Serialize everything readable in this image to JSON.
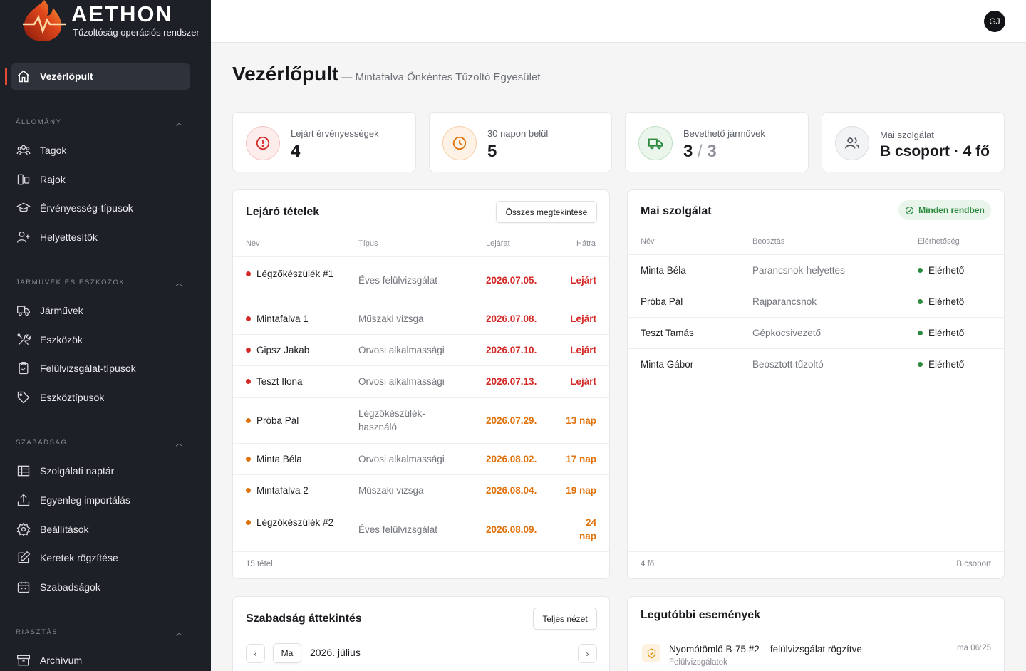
{
  "brand": {
    "name": "AETHON",
    "subtitle": "Tűzoltóság operációs rendszer"
  },
  "user": {
    "initials": "GJ"
  },
  "sidebar": {
    "active": {
      "label": "Vezérlőpult",
      "icon": "home-icon"
    },
    "sections": [
      {
        "title": "ÁLLOMÁNY",
        "items": [
          {
            "label": "Tagok",
            "icon": "users-icon"
          },
          {
            "label": "Rajok",
            "icon": "squads-icon"
          },
          {
            "label": "Érvényesség-típusok",
            "icon": "graduation-cap-icon"
          },
          {
            "label": "Helyettesítők",
            "icon": "user-plus-icon"
          }
        ]
      },
      {
        "title": "JÁRMŰVEK ÉS ESZKÖZÖK",
        "items": [
          {
            "label": "Járművek",
            "icon": "truck-icon"
          },
          {
            "label": "Eszközök",
            "icon": "tools-icon"
          },
          {
            "label": "Felülvizsgálat-típusok",
            "icon": "clipboard-check-icon"
          },
          {
            "label": "Eszköztípusok",
            "icon": "tag-icon"
          }
        ]
      },
      {
        "title": "SZABADSÁG",
        "items": [
          {
            "label": "Szolgálati naptár",
            "icon": "table-icon"
          },
          {
            "label": "Egyenleg importálás",
            "icon": "upload-icon"
          },
          {
            "label": "Beállítások",
            "icon": "gear-icon"
          },
          {
            "label": "Keretek rögzítése",
            "icon": "edit-icon"
          },
          {
            "label": "Szabadságok",
            "icon": "calendar-icon"
          }
        ]
      },
      {
        "title": "RIASZTÁS",
        "items": [
          {
            "label": "Archívum",
            "icon": "archive-icon"
          }
        ]
      }
    ]
  },
  "header": {
    "title": "Vezérlőpult",
    "subtitle": "— Mintafalva Önkéntes Tűzoltó Egyesület"
  },
  "stats": [
    {
      "label": "Lejárt érvényességek",
      "value": "4",
      "icon": "alert-circle-icon",
      "color": "#d42b28"
    },
    {
      "label": "30 napon belül",
      "value": "5",
      "icon": "clock-icon",
      "color": "#e0720c"
    },
    {
      "label": "Bevethető járművek",
      "value_main": "3",
      "value_sep": "/",
      "value_total": "3",
      "icon": "truck-icon",
      "color": "#2b8a3e"
    },
    {
      "label": "Mai szolgálat",
      "value": "B csoport · 4 fő",
      "icon": "users-icon",
      "color": "#5c6068"
    }
  ],
  "expiring": {
    "title": "Lejáró tételek",
    "view_all": "Összes megtekintése",
    "columns": [
      "Név",
      "Típus",
      "Lejárat",
      "Hátra"
    ],
    "rows": [
      {
        "name": "Légzőkészülék #1",
        "type": "Éves felülvizsgálat",
        "date": "2026.07.05.",
        "left": "Lejárt",
        "status": "red"
      },
      {
        "name": "Mintafalva 1",
        "type": "Műszaki vizsga",
        "date": "2026.07.08.",
        "left": "Lejárt",
        "status": "red"
      },
      {
        "name": "Gipsz Jakab",
        "type": "Orvosi alkalmassági",
        "date": "2026.07.10.",
        "left": "Lejárt",
        "status": "red"
      },
      {
        "name": "Teszt Ilona",
        "type": "Orvosi alkalmassági",
        "date": "2026.07.13.",
        "left": "Lejárt",
        "status": "red"
      },
      {
        "name": "Próba Pál",
        "type": "Légzőkészülék-használó",
        "date": "2026.07.29.",
        "left": "13 nap",
        "status": "orange"
      },
      {
        "name": "Minta Béla",
        "type": "Orvosi alkalmassági",
        "date": "2026.08.02.",
        "left": "17 nap",
        "status": "orange"
      },
      {
        "name": "Mintafalva 2",
        "type": "Műszaki vizsga",
        "date": "2026.08.04.",
        "left": "19 nap",
        "status": "orange"
      },
      {
        "name": "Légzőkészülék #2",
        "type": "Éves felülvizsgálat",
        "date": "2026.08.09.",
        "left": "24 nap",
        "status": "orange"
      }
    ],
    "footer": "15 tétel"
  },
  "duty": {
    "title": "Mai szolgálat",
    "badge": "Minden rendben",
    "columns": [
      "Név",
      "Beosztás",
      "Elérhetőség"
    ],
    "rows": [
      {
        "name": "Minta Béla",
        "role": "Parancsnok-helyettes",
        "availability": "Elérhető"
      },
      {
        "name": "Próba Pál",
        "role": "Rajparancsnok",
        "availability": "Elérhető"
      },
      {
        "name": "Teszt Tamás",
        "role": "Gépkocsivezető",
        "availability": "Elérhető"
      },
      {
        "name": "Minta Gábor",
        "role": "Beosztott tűzoltó",
        "availability": "Elérhető"
      }
    ],
    "footer_left": "4 fő",
    "footer_right": "B csoport"
  },
  "leave": {
    "title": "Szabadság áttekintés",
    "full_view": "Teljes nézet",
    "today": "Ma",
    "month": "2026. július"
  },
  "events": {
    "title": "Legutóbbi események",
    "items": [
      {
        "title": "Nyomótömlő B-75 #2 – felülvizsgálat rögzítve",
        "subtitle": "Felülvizsgálatok",
        "time": "ma 06:25"
      }
    ]
  },
  "colors": {
    "danger": "#d42b28",
    "warning": "#e0720c",
    "success": "#2b8a3e",
    "sidebar": "#1d2026",
    "accent": "#e24a35"
  }
}
